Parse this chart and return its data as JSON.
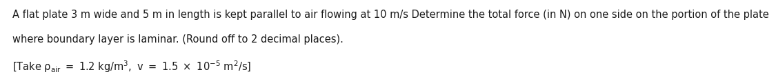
{
  "line1": "A flat plate 3 m wide and 5 m in length is kept parallel to air flowing at 10 m/s Determine the total force (in N) on one side on the portion of the plate",
  "line2": "where boundary layer is laminar. (Round off to 2 decimal places).",
  "background_color": "#ffffff",
  "text_color": "#1a1a1a",
  "font_size": 10.5,
  "fig_width": 10.45,
  "fig_height": 0.88,
  "line3_prefix": "[Take ρ",
  "line3_sub": "air",
  "line3_mid": " = 1.2 kg/m",
  "line3_sup1": "3",
  "line3_mid2": ", v = 1.5 × 10",
  "line3_sup2": "−5",
  "line3_mid3": " m",
  "line3_sup3": "2",
  "line3_suffix": "/s]"
}
